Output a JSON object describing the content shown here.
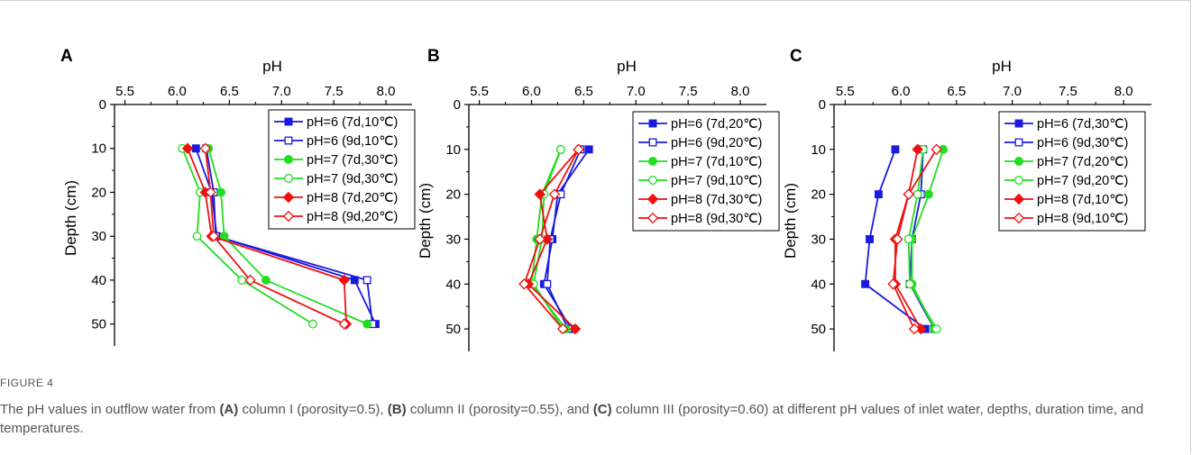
{
  "caption": {
    "label": "FIGURE 4",
    "parts": [
      {
        "text": "The pH values in outflow water from ",
        "bold": false
      },
      {
        "text": "(A)",
        "bold": true
      },
      {
        "text": " column I (porosity=0.5), ",
        "bold": false
      },
      {
        "text": "(B)",
        "bold": true
      },
      {
        "text": " column II (porosity=0.55), and ",
        "bold": false
      },
      {
        "text": "(C)",
        "bold": true
      },
      {
        "text": " column III (porosity=0.60) at different pH values of inlet water, depths, duration time, and temperatures.",
        "bold": false
      }
    ]
  },
  "chart_data": [
    {
      "type": "line",
      "panel": "A",
      "xlabel": "pH",
      "ylabel": "Depth (cm)",
      "xlim": [
        5.4,
        8.25
      ],
      "ylim": [
        0,
        55
      ],
      "x_ticks": [
        "5.5",
        "6.0",
        "6.5",
        "7.0",
        "7.5",
        "8.0"
      ],
      "y_ticks": [
        "0",
        "10",
        "20",
        "30",
        "40",
        "50"
      ],
      "y_inverted": true,
      "grid": false,
      "legend_position": "top-right",
      "depths": [
        10,
        20,
        30,
        40,
        50
      ],
      "series": [
        {
          "name": "pH=6 (7d,10℃)",
          "color": "#1a1adf",
          "marker": "square",
          "filled": true,
          "x": [
            6.18,
            6.33,
            6.38,
            7.7,
            7.9
          ]
        },
        {
          "name": "pH=6 (9d,10℃)",
          "color": "#1a1adf",
          "marker": "square",
          "filled": false,
          "x": [
            6.28,
            6.35,
            6.37,
            7.82,
            7.87
          ]
        },
        {
          "name": "pH=7 (7d,30℃)",
          "color": "#22dd22",
          "marker": "circle",
          "filled": true,
          "x": [
            6.3,
            6.42,
            6.45,
            6.85,
            7.82
          ]
        },
        {
          "name": "pH=7 (9d,30℃)",
          "color": "#22dd22",
          "marker": "circle",
          "filled": false,
          "x": [
            6.05,
            6.22,
            6.19,
            6.62,
            7.3
          ]
        },
        {
          "name": "pH=8 (7d,20℃)",
          "color": "#ee1111",
          "marker": "diamond",
          "filled": true,
          "x": [
            6.1,
            6.27,
            6.33,
            7.6,
            7.62
          ]
        },
        {
          "name": "pH=8 (9d,20℃)",
          "color": "#ee1111",
          "marker": "diamond",
          "filled": false,
          "x": [
            6.27,
            6.32,
            6.35,
            6.7,
            7.6
          ]
        }
      ]
    },
    {
      "type": "line",
      "panel": "B",
      "xlabel": "pH",
      "ylabel": "Depth (cm)",
      "xlim": [
        5.4,
        8.25
      ],
      "ylim": [
        0,
        55
      ],
      "x_ticks": [
        "5.5",
        "6.0",
        "6.5",
        "7.0",
        "7.5",
        "8.0"
      ],
      "y_ticks": [
        "0",
        "10",
        "20",
        "30",
        "40",
        "50"
      ],
      "y_inverted": true,
      "grid": false,
      "legend_position": "top-right",
      "depths": [
        10,
        20,
        30,
        40,
        50
      ],
      "series": [
        {
          "name": "pH=6 (7d,20℃)",
          "color": "#1a1adf",
          "marker": "square",
          "filled": true,
          "x": [
            6.55,
            6.25,
            6.2,
            6.12,
            6.38
          ]
        },
        {
          "name": "pH=6 (9d,20℃)",
          "color": "#1a1adf",
          "marker": "square",
          "filled": false,
          "x": [
            6.47,
            6.28,
            6.18,
            6.15,
            6.35
          ]
        },
        {
          "name": "pH=7 (7d,10℃)",
          "color": "#22dd22",
          "marker": "circle",
          "filled": true,
          "x": [
            6.28,
            6.1,
            6.05,
            6.0,
            6.33
          ]
        },
        {
          "name": "pH=7 (9d,10℃)",
          "color": "#22dd22",
          "marker": "circle",
          "filled": false,
          "x": [
            6.28,
            6.12,
            6.1,
            6.02,
            6.3
          ]
        },
        {
          "name": "pH=8 (7d,30℃)",
          "color": "#ee1111",
          "marker": "diamond",
          "filled": true,
          "x": [
            6.45,
            6.08,
            6.15,
            5.97,
            6.42
          ]
        },
        {
          "name": "pH=8 (9d,30℃)",
          "color": "#ee1111",
          "marker": "diamond",
          "filled": false,
          "x": [
            6.45,
            6.22,
            6.08,
            5.93,
            6.3
          ]
        }
      ]
    },
    {
      "type": "line",
      "panel": "C",
      "xlabel": "pH",
      "ylabel": "Depth (cm)",
      "xlim": [
        5.4,
        8.25
      ],
      "ylim": [
        0,
        55
      ],
      "x_ticks": [
        "5.5",
        "6.0",
        "6.5",
        "7.0",
        "7.5",
        "8.0"
      ],
      "y_ticks": [
        "0",
        "10",
        "20",
        "30",
        "40",
        "50"
      ],
      "y_inverted": true,
      "grid": false,
      "legend_position": "top-right",
      "depths": [
        10,
        20,
        30,
        40,
        50
      ],
      "series": [
        {
          "name": "pH=6 (7d,30℃)",
          "color": "#1a1adf",
          "marker": "square",
          "filled": true,
          "x": [
            5.95,
            5.8,
            5.72,
            5.68,
            6.22
          ]
        },
        {
          "name": "pH=6 (9d,30℃)",
          "color": "#1a1adf",
          "marker": "square",
          "filled": false,
          "x": [
            6.2,
            6.18,
            6.1,
            6.08,
            6.3
          ]
        },
        {
          "name": "pH=7 (7d,20℃)",
          "color": "#22dd22",
          "marker": "circle",
          "filled": true,
          "x": [
            6.38,
            6.25,
            6.1,
            6.1,
            6.3
          ]
        },
        {
          "name": "pH=7 (9d,20℃)",
          "color": "#22dd22",
          "marker": "circle",
          "filled": false,
          "x": [
            6.2,
            6.15,
            6.07,
            6.08,
            6.32
          ]
        },
        {
          "name": "pH=8 (7d,10℃)",
          "color": "#ee1111",
          "marker": "diamond",
          "filled": true,
          "x": [
            6.15,
            6.07,
            5.95,
            5.95,
            6.18
          ]
        },
        {
          "name": "pH=8 (9d,10℃)",
          "color": "#ee1111",
          "marker": "diamond",
          "filled": false,
          "x": [
            6.32,
            6.07,
            5.97,
            5.93,
            6.12
          ]
        }
      ]
    }
  ]
}
